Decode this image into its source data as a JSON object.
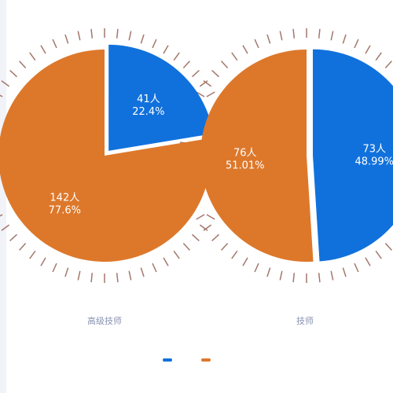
{
  "colors": {
    "blue": "#1171dc",
    "orange": "#dd782b",
    "tick": "#a4776c",
    "category_text": "#8a93b2",
    "left_strip": "#f2f3f8"
  },
  "chart_data": {
    "type": "pie",
    "legend": {
      "placement": "bottom",
      "entries": [
        {
          "color": "#1171dc",
          "label": ""
        },
        {
          "color": "#dd782b",
          "label": ""
        }
      ]
    },
    "pies": [
      {
        "category": "高级技师",
        "slices": [
          {
            "value": 41,
            "count_label": "41人",
            "percent_label": "22.4%",
            "color": "#1171dc",
            "exploded": true
          },
          {
            "value": 142,
            "count_label": "142人",
            "percent_label": "77.6%",
            "color": "#dd782b",
            "exploded": false
          }
        ]
      },
      {
        "category": "技师",
        "slices": [
          {
            "value": 73,
            "count_label": "73人",
            "percent_label": "48.99%",
            "color": "#1171dc",
            "exploded": true
          },
          {
            "value": 76,
            "count_label": "76人",
            "percent_label": "51.01%",
            "color": "#dd782b",
            "exploded": false
          }
        ]
      }
    ]
  }
}
